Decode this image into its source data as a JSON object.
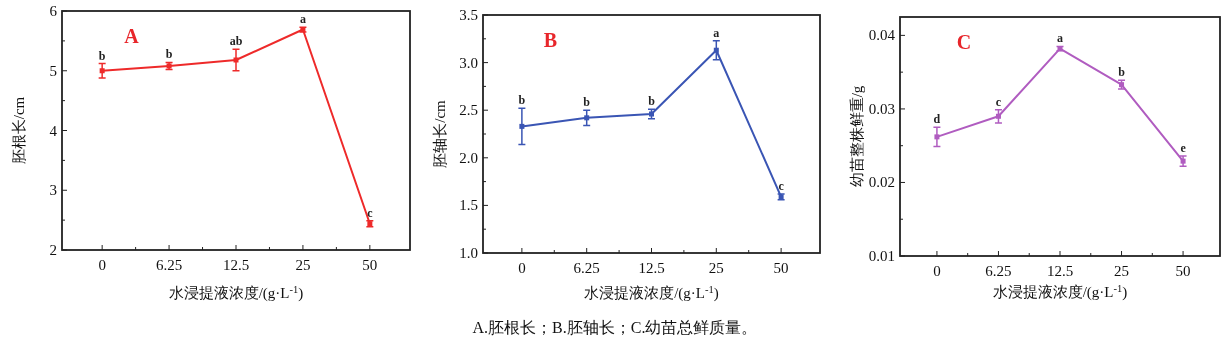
{
  "chart_data": [
    {
      "type": "line",
      "title": "A",
      "xlabel": "水浸提液浓度/(g·L$^{-1}$)",
      "ylabel": "胚根长/cm",
      "categories": [
        "0",
        "6.25",
        "12.5",
        "25",
        "50"
      ],
      "marker": "square",
      "ylim": [
        2,
        6
      ],
      "yticks": [
        2,
        3,
        4,
        5,
        6
      ],
      "series": [
        {
          "color": "#ee2a2a",
          "values": [
            5.0,
            5.08,
            5.18,
            5.69,
            2.44
          ],
          "errors": [
            0.12,
            0.06,
            0.18,
            0.04,
            0.05
          ]
        }
      ],
      "annotations": [
        {
          "text": "b",
          "x": "0",
          "y": 5.0
        },
        {
          "text": "b",
          "x": "6.25",
          "y": 5.08
        },
        {
          "text": "ab",
          "x": "12.5",
          "y": 5.18
        },
        {
          "text": "a",
          "x": "25",
          "y": 5.69
        },
        {
          "text": "c",
          "x": "50",
          "y": 2.44
        }
      ]
    },
    {
      "type": "line",
      "title": "B",
      "xlabel": "水浸提液浓度/(g·L$^{-1}$)",
      "ylabel": "胚轴长/cm",
      "categories": [
        "0",
        "6.25",
        "12.5",
        "25",
        "50"
      ],
      "marker": "square",
      "ylim": [
        1,
        3.5
      ],
      "yticks": [
        {
          "value": 1,
          "label": "1.0"
        },
        {
          "value": 1.5,
          "label": "1.5"
        },
        {
          "value": 2,
          "label": "2.0"
        },
        {
          "value": 2.5,
          "label": "2.5"
        },
        {
          "value": 3,
          "label": "3.0"
        },
        {
          "value": 3.5,
          "label": "3.5"
        }
      ],
      "series": [
        {
          "color": "#3a55b4",
          "values": [
            2.33,
            2.42,
            2.46,
            3.13,
            1.59
          ],
          "errors": [
            0.19,
            0.08,
            0.05,
            0.1,
            0.03
          ]
        }
      ],
      "annotations": [
        {
          "text": "b",
          "x": "0",
          "y": 2.33
        },
        {
          "text": "b",
          "x": "6.25",
          "y": 2.42
        },
        {
          "text": "b",
          "x": "12.5",
          "y": 2.46
        },
        {
          "text": "a",
          "x": "25",
          "y": 3.13
        },
        {
          "text": "c",
          "x": "50",
          "y": 1.59
        },
        "A.胚根长；B.胚轴长；C.幼苗总鲜质量。"
      ]
    },
    {
      "type": "line",
      "title": "C",
      "xlabel": "水浸提液浓度/(g·L$^{-1}$)",
      "ylabel": "幼苗整株鲜重/g",
      "categories": [
        "0",
        "6.25",
        "12.5",
        "25",
        "50"
      ],
      "marker": "square",
      "ylim": [
        0.01,
        0.0425
      ],
      "yticks": [
        0.01,
        0.02,
        0.03,
        0.04
      ],
      "series": [
        {
          "color": "#b05cc0",
          "values": [
            0.0262,
            0.029,
            0.0382,
            0.0333,
            0.0229
          ],
          "errors": [
            0.0013,
            0.0009,
            0.0003,
            0.0006,
            0.0007
          ]
        }
      ],
      "annotations": [
        {
          "text": "d",
          "x": "0",
          "y": 0.0262
        },
        {
          "text": "c",
          "x": "6.25",
          "y": 0.029
        },
        {
          "text": "a",
          "x": "12.5",
          "y": 0.0382
        },
        {
          "text": "b",
          "x": "25",
          "y": 0.0333
        },
        {
          "text": "e",
          "x": "50",
          "y": 0.0229
        }
      ]
    }
  ]
}
